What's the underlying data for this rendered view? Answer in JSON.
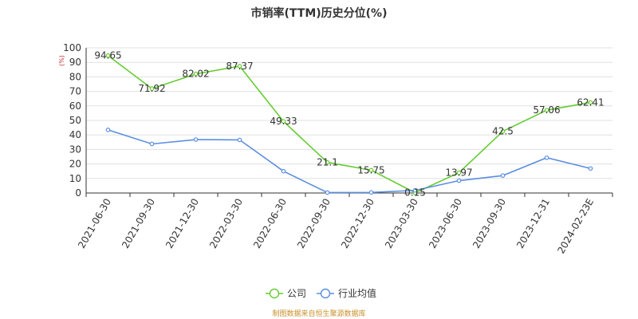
{
  "chart_data": {
    "type": "line",
    "title": "市销率(TTM)历史分位(%)",
    "unit": "(%)",
    "categories": [
      "2021-06-30",
      "2021-09-30",
      "2021-12-30",
      "2022-03-30",
      "2022-06-30",
      "2022-09-30",
      "2022-12-30",
      "2023-03-30",
      "2023-06-30",
      "2023-09-30",
      "2023-12-31",
      "2024-02-23E"
    ],
    "ylim": [
      0,
      100
    ],
    "yticks": [
      0,
      10,
      20,
      30,
      40,
      50,
      60,
      70,
      80,
      90,
      100
    ],
    "grid": true,
    "legend_position": "bottom",
    "series": [
      {
        "name": "公司",
        "color": "#66cc33",
        "values": [
          94.65,
          71.92,
          82.02,
          87.37,
          49.33,
          21.1,
          15.75,
          0.15,
          13.97,
          42.5,
          57.06,
          62.41
        ],
        "labels": [
          "94.65",
          "71.92",
          "82.02",
          "87.37",
          "49.33",
          "21.1",
          "15.75",
          "0.15",
          "13.97",
          "42.5",
          "57.06",
          "62.41"
        ]
      },
      {
        "name": "行业均值",
        "color": "#5b8ee0",
        "values": [
          43.5,
          33.8,
          36.8,
          36.6,
          15.0,
          0.3,
          0.4,
          1.8,
          8.5,
          12.0,
          24.3,
          16.9
        ]
      }
    ]
  },
  "footer": {
    "source": "制图数据来自恒生聚源数据库",
    "color": "#c8902a"
  },
  "colors": {
    "unit": "#cc3333",
    "grid": "#e0e0e0",
    "axis": "#333333"
  }
}
